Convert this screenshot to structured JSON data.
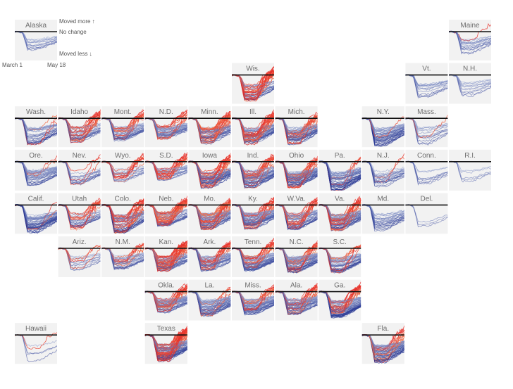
{
  "chart_data": {
    "type": "line",
    "description_type": "small-multiples tile map",
    "x_range": [
      "March 1",
      "May 18"
    ],
    "y_reference": 0,
    "legend": {
      "more": "Moved more ↑",
      "baseline": "No change",
      "less": "Moved less ↓",
      "start": "March 1",
      "end": "May 18"
    },
    "colors": {
      "less_strong": "#1f2f8f",
      "less_light": "#b9c8e6",
      "more_light": "#f7b36a",
      "more_strong": "#e8302a",
      "tile_bg": "#f2f2f2",
      "baseline": "#111111"
    },
    "states": [
      {
        "name": "Alaska",
        "row": 0,
        "col": 0,
        "n": 14,
        "u": 0.02,
        "d": 0.55
      },
      {
        "name": "Maine",
        "row": 0,
        "col": 10,
        "n": 18,
        "u": 0.03,
        "d": 0.65
      },
      {
        "name": "Wis.",
        "row": 1,
        "col": 5,
        "n": 45,
        "u": 0.45,
        "d": 0.75
      },
      {
        "name": "Vt.",
        "row": 1,
        "col": 9,
        "n": 15,
        "u": 0.02,
        "d": 0.7
      },
      {
        "name": "N.H.",
        "row": 1,
        "col": 10,
        "n": 12,
        "u": 0.02,
        "d": 0.6
      },
      {
        "name": "Wash.",
        "row": 2,
        "col": 0,
        "n": 32,
        "u": 0.05,
        "d": 0.75
      },
      {
        "name": "Idaho",
        "row": 2,
        "col": 1,
        "n": 38,
        "u": 0.4,
        "d": 0.7
      },
      {
        "name": "Mont.",
        "row": 2,
        "col": 2,
        "n": 40,
        "u": 0.3,
        "d": 0.65
      },
      {
        "name": "N.D.",
        "row": 2,
        "col": 3,
        "n": 45,
        "u": 0.35,
        "d": 0.6
      },
      {
        "name": "Minn.",
        "row": 2,
        "col": 4,
        "n": 55,
        "u": 0.45,
        "d": 0.75
      },
      {
        "name": "Ill.",
        "row": 2,
        "col": 5,
        "n": 60,
        "u": 0.3,
        "d": 0.75
      },
      {
        "name": "Mich.",
        "row": 2,
        "col": 6,
        "n": 52,
        "u": 0.35,
        "d": 0.75
      },
      {
        "name": "N.Y.",
        "row": 2,
        "col": 8,
        "n": 45,
        "u": 0.05,
        "d": 0.8
      },
      {
        "name": "Mass.",
        "row": 2,
        "col": 9,
        "n": 14,
        "u": 0.02,
        "d": 0.75
      },
      {
        "name": "Ore.",
        "row": 3,
        "col": 0,
        "n": 36,
        "u": 0.05,
        "d": 0.7
      },
      {
        "name": "Nev.",
        "row": 3,
        "col": 1,
        "n": 17,
        "u": 0.2,
        "d": 0.65
      },
      {
        "name": "Wyo.",
        "row": 3,
        "col": 2,
        "n": 23,
        "u": 0.45,
        "d": 0.6
      },
      {
        "name": "S.D.",
        "row": 3,
        "col": 3,
        "n": 40,
        "u": 0.4,
        "d": 0.55
      },
      {
        "name": "Iowa",
        "row": 3,
        "col": 4,
        "n": 60,
        "u": 0.4,
        "d": 0.75
      },
      {
        "name": "Ind.",
        "row": 3,
        "col": 5,
        "n": 55,
        "u": 0.2,
        "d": 0.75
      },
      {
        "name": "Ohio",
        "row": 3,
        "col": 6,
        "n": 60,
        "u": 0.25,
        "d": 0.75
      },
      {
        "name": "Pa.",
        "row": 3,
        "col": 7,
        "n": 50,
        "u": 0.1,
        "d": 0.85
      },
      {
        "name": "N.J.",
        "row": 3,
        "col": 8,
        "n": 21,
        "u": 0.02,
        "d": 0.75
      },
      {
        "name": "Conn.",
        "row": 3,
        "col": 9,
        "n": 8,
        "u": 0.02,
        "d": 0.7
      },
      {
        "name": "R.I.",
        "row": 3,
        "col": 10,
        "n": 5,
        "u": 0.02,
        "d": 0.6
      },
      {
        "name": "Calif.",
        "row": 4,
        "col": 0,
        "n": 50,
        "u": 0.05,
        "d": 0.8
      },
      {
        "name": "Utah",
        "row": 4,
        "col": 1,
        "n": 29,
        "u": 0.35,
        "d": 0.7
      },
      {
        "name": "Colo.",
        "row": 4,
        "col": 2,
        "n": 55,
        "u": 0.5,
        "d": 0.8
      },
      {
        "name": "Neb.",
        "row": 4,
        "col": 3,
        "n": 60,
        "u": 0.5,
        "d": 0.6
      },
      {
        "name": "Mo.",
        "row": 4,
        "col": 4,
        "n": 65,
        "u": 0.4,
        "d": 0.7
      },
      {
        "name": "Ky.",
        "row": 4,
        "col": 5,
        "n": 65,
        "u": 0.3,
        "d": 0.7
      },
      {
        "name": "W.Va.",
        "row": 4,
        "col": 6,
        "n": 50,
        "u": 0.3,
        "d": 0.7
      },
      {
        "name": "Va.",
        "row": 4,
        "col": 7,
        "n": 60,
        "u": 0.35,
        "d": 0.75
      },
      {
        "name": "Md.",
        "row": 4,
        "col": 8,
        "n": 24,
        "u": 0.02,
        "d": 0.75
      },
      {
        "name": "Del.",
        "row": 4,
        "col": 9,
        "n": 3,
        "u": 0.02,
        "d": 0.7
      },
      {
        "name": "Ariz.",
        "row": 5,
        "col": 1,
        "n": 15,
        "u": 0.2,
        "d": 0.65
      },
      {
        "name": "N.M.",
        "row": 5,
        "col": 2,
        "n": 33,
        "u": 0.35,
        "d": 0.6
      },
      {
        "name": "Kan.",
        "row": 5,
        "col": 3,
        "n": 65,
        "u": 0.5,
        "d": 0.65
      },
      {
        "name": "Ark.",
        "row": 5,
        "col": 4,
        "n": 50,
        "u": 0.3,
        "d": 0.65
      },
      {
        "name": "Tenn.",
        "row": 5,
        "col": 5,
        "n": 60,
        "u": 0.25,
        "d": 0.65
      },
      {
        "name": "N.C.",
        "row": 5,
        "col": 6,
        "n": 65,
        "u": 0.25,
        "d": 0.7
      },
      {
        "name": "S.C.",
        "row": 5,
        "col": 7,
        "n": 46,
        "u": 0.2,
        "d": 0.7
      },
      {
        "name": "Okla.",
        "row": 6,
        "col": 3,
        "n": 60,
        "u": 0.35,
        "d": 0.6
      },
      {
        "name": "La.",
        "row": 6,
        "col": 4,
        "n": 50,
        "u": 0.2,
        "d": 0.7
      },
      {
        "name": "Miss.",
        "row": 6,
        "col": 5,
        "n": 60,
        "u": 0.3,
        "d": 0.65
      },
      {
        "name": "Ala.",
        "row": 6,
        "col": 6,
        "n": 60,
        "u": 0.3,
        "d": 0.65
      },
      {
        "name": "Ga.",
        "row": 6,
        "col": 7,
        "n": 70,
        "u": 0.3,
        "d": 0.75
      },
      {
        "name": "Hawaii",
        "row": 7,
        "col": 0,
        "n": 5,
        "u": 0.02,
        "d": 0.8
      },
      {
        "name": "Texas",
        "row": 7,
        "col": 3,
        "n": 90,
        "u": 0.45,
        "d": 0.75
      },
      {
        "name": "Fla.",
        "row": 7,
        "col": 8,
        "n": 60,
        "u": 0.2,
        "d": 0.8
      }
    ]
  }
}
